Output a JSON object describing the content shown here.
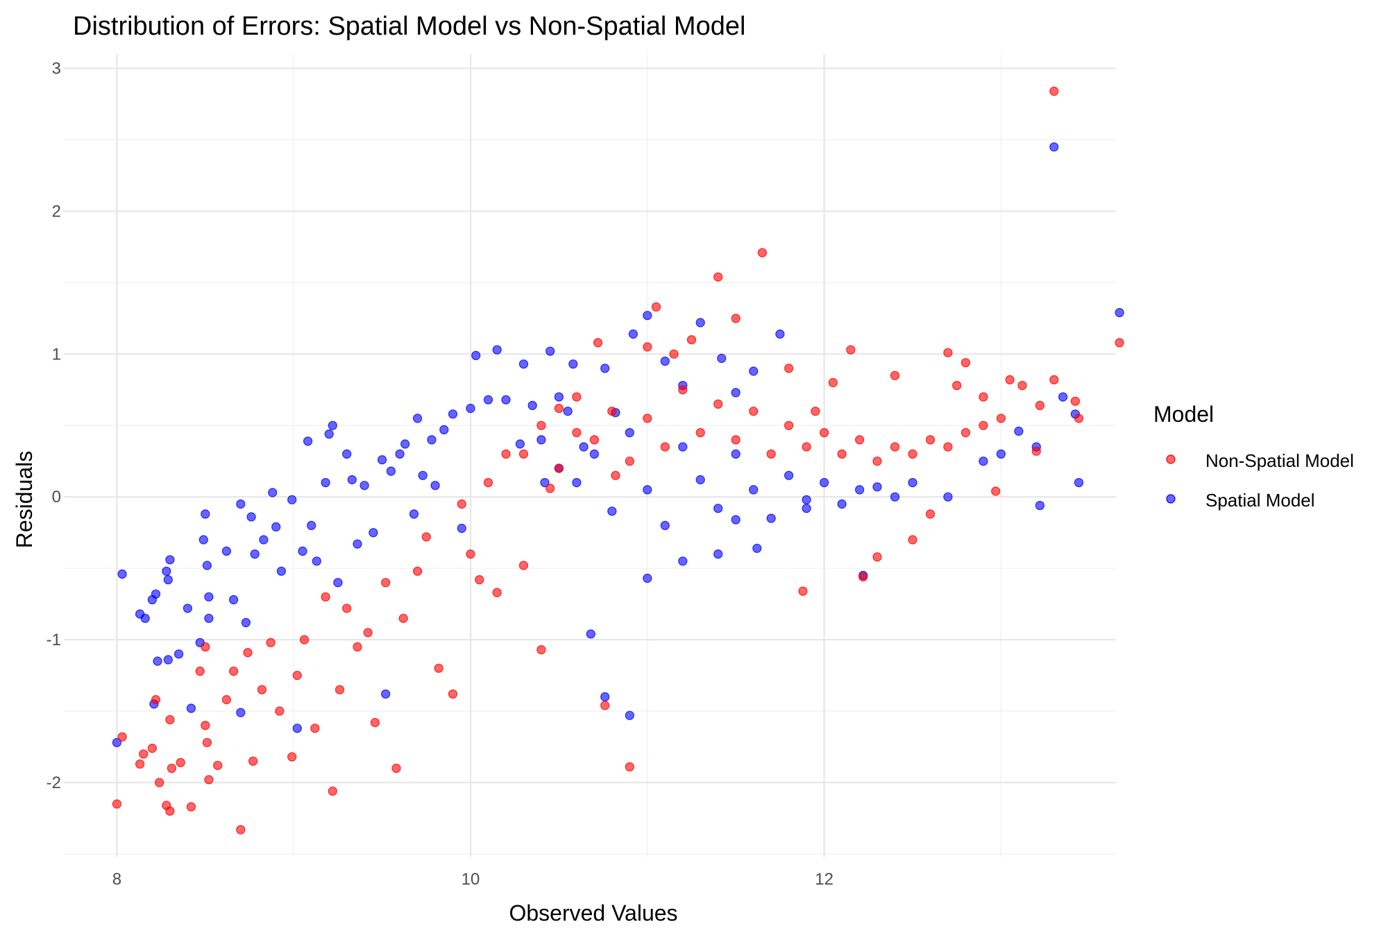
{
  "chart_data": {
    "type": "scatter",
    "title": "Distribution of Errors: Spatial Model vs Non-Spatial Model",
    "xlabel": "Observed Values",
    "ylabel": "Residuals",
    "xlim": [
      7.7,
      13.65
    ],
    "ylim": [
      -2.52,
      3.1
    ],
    "x_ticks": [
      8,
      10,
      12
    ],
    "x_tick_labels": [
      "8",
      "10",
      "12"
    ],
    "y_ticks": [
      -2,
      -1,
      0,
      1,
      2,
      3
    ],
    "y_tick_labels": [
      "-2",
      "-1",
      "0",
      "1",
      "2",
      "3"
    ],
    "grid": true,
    "legend": {
      "title": "Model",
      "position": "right"
    },
    "colors": {
      "Non-Spatial Model": "#ff0000",
      "Spatial Model": "#0000ff"
    },
    "series": [
      {
        "name": "Spatial Model",
        "points": [
          [
            8.0,
            -1.72
          ],
          [
            8.03,
            -0.54
          ],
          [
            8.13,
            -0.82
          ],
          [
            8.16,
            -0.85
          ],
          [
            8.2,
            -0.72
          ],
          [
            8.21,
            -1.45
          ],
          [
            8.22,
            -0.68
          ],
          [
            8.23,
            -1.15
          ],
          [
            8.28,
            -0.52
          ],
          [
            8.29,
            -0.58
          ],
          [
            8.29,
            -1.14
          ],
          [
            8.3,
            -0.44
          ],
          [
            8.35,
            -1.1
          ],
          [
            8.4,
            -0.78
          ],
          [
            8.42,
            -1.48
          ],
          [
            8.47,
            -1.02
          ],
          [
            8.49,
            -0.3
          ],
          [
            8.5,
            -0.12
          ],
          [
            8.51,
            -0.48
          ],
          [
            8.52,
            -0.7
          ],
          [
            8.52,
            -0.85
          ],
          [
            8.62,
            -0.38
          ],
          [
            8.66,
            -0.72
          ],
          [
            8.7,
            -0.05
          ],
          [
            8.7,
            -1.51
          ],
          [
            8.73,
            -0.88
          ],
          [
            8.76,
            -0.14
          ],
          [
            8.78,
            -0.4
          ],
          [
            8.83,
            -0.3
          ],
          [
            8.88,
            0.03
          ],
          [
            8.9,
            -0.21
          ],
          [
            8.93,
            -0.52
          ],
          [
            8.99,
            -0.02
          ],
          [
            9.02,
            -1.62
          ],
          [
            9.05,
            -0.38
          ],
          [
            9.08,
            0.39
          ],
          [
            9.1,
            -0.2
          ],
          [
            9.13,
            -0.45
          ],
          [
            9.18,
            0.1
          ],
          [
            9.2,
            0.44
          ],
          [
            9.22,
            0.5
          ],
          [
            9.25,
            -0.6
          ],
          [
            9.3,
            0.3
          ],
          [
            9.33,
            0.12
          ],
          [
            9.36,
            -0.33
          ],
          [
            9.4,
            0.08
          ],
          [
            9.45,
            -0.25
          ],
          [
            9.5,
            0.26
          ],
          [
            9.52,
            -1.38
          ],
          [
            9.55,
            0.18
          ],
          [
            9.6,
            0.3
          ],
          [
            9.63,
            0.37
          ],
          [
            9.68,
            -0.12
          ],
          [
            9.7,
            0.55
          ],
          [
            9.73,
            0.15
          ],
          [
            9.78,
            0.4
          ],
          [
            9.8,
            0.08
          ],
          [
            9.85,
            0.47
          ],
          [
            9.9,
            0.58
          ],
          [
            9.95,
            -0.22
          ],
          [
            10.0,
            0.62
          ],
          [
            10.03,
            0.99
          ],
          [
            10.1,
            0.68
          ],
          [
            10.15,
            1.03
          ],
          [
            10.2,
            0.68
          ],
          [
            10.28,
            0.37
          ],
          [
            10.3,
            0.93
          ],
          [
            10.35,
            0.64
          ],
          [
            10.42,
            0.1
          ],
          [
            10.45,
            1.02
          ],
          [
            10.5,
            0.7
          ],
          [
            10.55,
            0.6
          ],
          [
            10.58,
            0.93
          ],
          [
            10.64,
            0.35
          ],
          [
            10.68,
            -0.96
          ],
          [
            10.76,
            0.9
          ],
          [
            10.82,
            0.59
          ],
          [
            10.92,
            1.14
          ],
          [
            11.0,
            1.27
          ],
          [
            11.1,
            0.95
          ],
          [
            11.2,
            0.78
          ],
          [
            11.3,
            1.22
          ],
          [
            11.42,
            0.97
          ],
          [
            11.5,
            0.73
          ],
          [
            11.6,
            0.88
          ],
          [
            11.75,
            1.14
          ],
          [
            11.62,
            -0.36
          ],
          [
            11.4,
            -0.4
          ],
          [
            11.2,
            -0.45
          ],
          [
            10.76,
            -1.4
          ],
          [
            10.9,
            -1.53
          ],
          [
            11.0,
            -0.57
          ],
          [
            11.5,
            -0.16
          ],
          [
            11.9,
            -0.08
          ],
          [
            12.22,
            -0.55
          ],
          [
            12.3,
            0.07
          ],
          [
            12.5,
            0.1
          ],
          [
            12.7,
            0.0
          ],
          [
            12.9,
            0.25
          ],
          [
            13.0,
            0.3
          ],
          [
            13.1,
            0.46
          ],
          [
            13.2,
            0.35
          ],
          [
            13.22,
            -0.06
          ],
          [
            13.35,
            0.7
          ],
          [
            13.3,
            2.45
          ],
          [
            13.42,
            0.58
          ],
          [
            13.44,
            0.1
          ],
          [
            13.67,
            1.29
          ],
          [
            10.4,
            0.4
          ],
          [
            10.5,
            0.2
          ],
          [
            10.6,
            0.1
          ],
          [
            10.7,
            0.3
          ],
          [
            10.8,
            -0.1
          ],
          [
            10.9,
            0.45
          ],
          [
            11.0,
            0.05
          ],
          [
            11.1,
            -0.2
          ],
          [
            11.2,
            0.35
          ],
          [
            11.3,
            0.12
          ],
          [
            11.4,
            -0.08
          ],
          [
            11.5,
            0.3
          ],
          [
            11.6,
            0.05
          ],
          [
            11.7,
            -0.15
          ],
          [
            11.8,
            0.15
          ],
          [
            11.9,
            -0.02
          ],
          [
            12.0,
            0.1
          ],
          [
            12.1,
            -0.05
          ],
          [
            12.2,
            0.05
          ],
          [
            12.4,
            0.0
          ]
        ]
      },
      {
        "name": "Non-Spatial Model",
        "points": [
          [
            8.0,
            -2.15
          ],
          [
            8.03,
            -1.68
          ],
          [
            8.13,
            -1.87
          ],
          [
            8.15,
            -1.8
          ],
          [
            8.2,
            -1.76
          ],
          [
            8.22,
            -1.42
          ],
          [
            8.24,
            -2.0
          ],
          [
            8.28,
            -2.16
          ],
          [
            8.3,
            -2.2
          ],
          [
            8.3,
            -1.56
          ],
          [
            8.31,
            -1.9
          ],
          [
            8.36,
            -1.86
          ],
          [
            8.42,
            -2.17
          ],
          [
            8.47,
            -1.22
          ],
          [
            8.5,
            -1.05
          ],
          [
            8.5,
            -1.6
          ],
          [
            8.51,
            -1.72
          ],
          [
            8.52,
            -1.98
          ],
          [
            8.57,
            -1.88
          ],
          [
            8.62,
            -1.42
          ],
          [
            8.66,
            -1.22
          ],
          [
            8.7,
            -2.33
          ],
          [
            8.74,
            -1.09
          ],
          [
            8.77,
            -1.85
          ],
          [
            8.82,
            -1.35
          ],
          [
            8.87,
            -1.02
          ],
          [
            8.92,
            -1.5
          ],
          [
            8.99,
            -1.82
          ],
          [
            9.02,
            -1.25
          ],
          [
            9.06,
            -1.0
          ],
          [
            9.12,
            -1.62
          ],
          [
            9.18,
            -0.7
          ],
          [
            9.22,
            -2.06
          ],
          [
            9.26,
            -1.35
          ],
          [
            9.3,
            -0.78
          ],
          [
            9.36,
            -1.05
          ],
          [
            9.42,
            -0.95
          ],
          [
            9.46,
            -1.58
          ],
          [
            9.52,
            -0.6
          ],
          [
            9.58,
            -1.9
          ],
          [
            9.62,
            -0.85
          ],
          [
            9.7,
            -0.52
          ],
          [
            9.75,
            -0.28
          ],
          [
            9.82,
            -1.2
          ],
          [
            9.9,
            -1.38
          ],
          [
            9.95,
            -0.05
          ],
          [
            10.0,
            -0.4
          ],
          [
            10.05,
            -0.58
          ],
          [
            10.1,
            0.1
          ],
          [
            10.15,
            -0.67
          ],
          [
            10.2,
            0.3
          ],
          [
            10.3,
            -0.48
          ],
          [
            10.4,
            -1.07
          ],
          [
            10.45,
            0.06
          ],
          [
            10.5,
            0.62
          ],
          [
            10.6,
            0.45
          ],
          [
            10.72,
            1.08
          ],
          [
            10.76,
            -1.46
          ],
          [
            10.82,
            0.15
          ],
          [
            10.9,
            -1.89
          ],
          [
            11.0,
            1.05
          ],
          [
            11.05,
            1.33
          ],
          [
            11.15,
            1.0
          ],
          [
            11.25,
            1.1
          ],
          [
            11.4,
            1.54
          ],
          [
            11.5,
            1.25
          ],
          [
            11.65,
            1.71
          ],
          [
            11.8,
            0.9
          ],
          [
            11.88,
            -0.66
          ],
          [
            11.95,
            0.6
          ],
          [
            12.05,
            0.8
          ],
          [
            12.15,
            1.03
          ],
          [
            12.22,
            -0.56
          ],
          [
            12.3,
            -0.42
          ],
          [
            12.4,
            0.85
          ],
          [
            12.5,
            -0.3
          ],
          [
            12.6,
            -0.12
          ],
          [
            12.7,
            1.01
          ],
          [
            12.75,
            0.78
          ],
          [
            12.8,
            0.94
          ],
          [
            12.9,
            0.7
          ],
          [
            12.97,
            0.04
          ],
          [
            13.05,
            0.82
          ],
          [
            13.12,
            0.78
          ],
          [
            13.2,
            0.32
          ],
          [
            13.22,
            0.64
          ],
          [
            13.3,
            0.82
          ],
          [
            13.3,
            2.84
          ],
          [
            13.42,
            0.67
          ],
          [
            13.44,
            0.55
          ],
          [
            13.67,
            1.08
          ],
          [
            10.3,
            0.3
          ],
          [
            10.4,
            0.5
          ],
          [
            10.5,
            0.2
          ],
          [
            10.6,
            0.7
          ],
          [
            10.7,
            0.4
          ],
          [
            10.8,
            0.6
          ],
          [
            10.9,
            0.25
          ],
          [
            11.0,
            0.55
          ],
          [
            11.1,
            0.35
          ],
          [
            11.2,
            0.75
          ],
          [
            11.3,
            0.45
          ],
          [
            11.4,
            0.65
          ],
          [
            11.5,
            0.4
          ],
          [
            11.6,
            0.6
          ],
          [
            11.7,
            0.3
          ],
          [
            11.8,
            0.5
          ],
          [
            11.9,
            0.35
          ],
          [
            12.0,
            0.45
          ],
          [
            12.1,
            0.3
          ],
          [
            12.2,
            0.4
          ],
          [
            12.3,
            0.25
          ],
          [
            12.4,
            0.35
          ],
          [
            12.5,
            0.3
          ],
          [
            12.6,
            0.4
          ],
          [
            12.7,
            0.35
          ],
          [
            12.8,
            0.45
          ],
          [
            12.9,
            0.5
          ],
          [
            13.0,
            0.55
          ]
        ]
      }
    ]
  }
}
